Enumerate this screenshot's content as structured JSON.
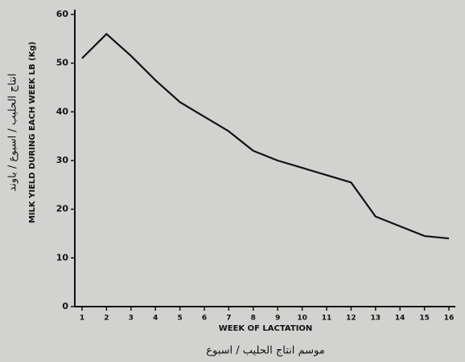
{
  "chart_data": {
    "type": "line",
    "y_label": "MILK YIELD DURING EACH WEEK LB (Kg)",
    "y_label_ar": "انتاج الحليب / اسبوع / باوند",
    "x_label": "WEEK OF LACTATION",
    "x_label_ar": "موسم انتاج الحليب / اسبوع",
    "x": [
      1,
      2,
      3,
      4,
      5,
      6,
      7,
      8,
      9,
      10,
      11,
      12,
      13,
      14,
      15,
      16
    ],
    "series": [
      {
        "color": "#111111",
        "values": [
          51,
          56,
          51.5,
          46.5,
          42,
          39,
          36,
          32,
          30,
          28.5,
          27,
          25.5,
          18.5,
          16.5,
          14.5,
          14
        ]
      }
    ],
    "xlim": [
      1,
      16
    ],
    "xticks": [
      1,
      2,
      3,
      4,
      5,
      6,
      7,
      8,
      9,
      10,
      11,
      12,
      13,
      14,
      15,
      16
    ],
    "ylim": [
      0,
      60
    ],
    "yticks": [
      0,
      10,
      20,
      30,
      40,
      50,
      60
    ]
  }
}
